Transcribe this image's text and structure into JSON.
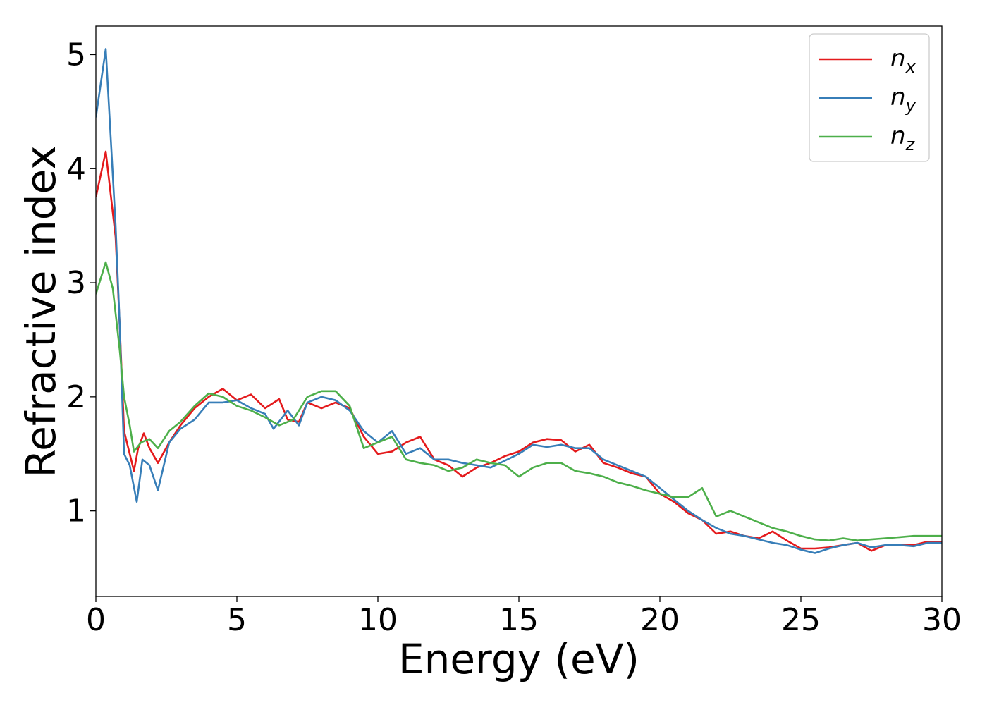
{
  "chart_data": {
    "type": "line",
    "title": "",
    "xlabel": "Energy (eV)",
    "ylabel": "Refractive index",
    "xlim": [
      0,
      30
    ],
    "ylim": [
      0.25,
      5.25
    ],
    "x_ticks": [
      0,
      5,
      10,
      15,
      20,
      25,
      30
    ],
    "y_ticks": [
      1,
      2,
      3,
      4,
      5
    ],
    "grid": false,
    "legend_position": "top-right",
    "series": [
      {
        "name": "n_x",
        "legend_base": "n",
        "legend_sub": "x",
        "color": "#e41a1c",
        "x": [
          0,
          0.35,
          0.7,
          0.85,
          1.0,
          1.2,
          1.35,
          1.5,
          1.7,
          1.9,
          2.2,
          2.6,
          3.0,
          3.5,
          4.0,
          4.5,
          5.0,
          5.5,
          6.0,
          6.5,
          6.8,
          7.2,
          7.5,
          8.0,
          8.5,
          9.0,
          9.5,
          10.0,
          10.5,
          11.0,
          11.5,
          12.0,
          12.5,
          13.0,
          13.5,
          14.0,
          14.5,
          15.0,
          15.5,
          16.0,
          16.5,
          17.0,
          17.5,
          18.0,
          18.5,
          19.0,
          19.5,
          20.0,
          20.5,
          21.0,
          21.5,
          22.0,
          22.5,
          23.0,
          23.5,
          24.0,
          24.5,
          25.0,
          25.5,
          26.0,
          26.5,
          27.0,
          27.5,
          28.0,
          28.5,
          29.0,
          29.5,
          30.0
        ],
        "y": [
          3.75,
          4.15,
          3.4,
          2.6,
          1.7,
          1.5,
          1.35,
          1.55,
          1.68,
          1.55,
          1.42,
          1.6,
          1.75,
          1.9,
          2.0,
          2.07,
          1.97,
          2.02,
          1.9,
          1.98,
          1.8,
          1.78,
          1.95,
          1.9,
          1.95,
          1.9,
          1.65,
          1.5,
          1.52,
          1.6,
          1.65,
          1.45,
          1.4,
          1.3,
          1.38,
          1.42,
          1.48,
          1.52,
          1.6,
          1.63,
          1.62,
          1.52,
          1.58,
          1.42,
          1.38,
          1.33,
          1.3,
          1.15,
          1.08,
          0.98,
          0.92,
          0.8,
          0.82,
          0.78,
          0.76,
          0.82,
          0.74,
          0.67,
          0.67,
          0.68,
          0.7,
          0.72,
          0.65,
          0.7,
          0.7,
          0.7,
          0.73,
          0.73
        ]
      },
      {
        "name": "n_y",
        "legend_base": "n",
        "legend_sub": "y",
        "color": "#377eb8",
        "x": [
          0,
          0.35,
          0.7,
          0.85,
          1.0,
          1.2,
          1.45,
          1.65,
          1.9,
          2.2,
          2.6,
          3.0,
          3.5,
          4.0,
          4.5,
          5.0,
          5.5,
          6.0,
          6.3,
          6.8,
          7.2,
          7.5,
          8.0,
          8.5,
          9.0,
          9.5,
          10.0,
          10.5,
          11.0,
          11.5,
          12.0,
          12.5,
          13.0,
          13.5,
          14.0,
          14.5,
          15.0,
          15.5,
          16.0,
          16.5,
          17.0,
          17.5,
          18.0,
          18.5,
          19.0,
          19.5,
          20.0,
          20.5,
          21.0,
          21.5,
          22.0,
          22.5,
          23.0,
          23.5,
          24.0,
          24.5,
          25.0,
          25.5,
          26.0,
          26.5,
          27.0,
          27.5,
          28.0,
          28.5,
          29.0,
          29.5,
          30.0
        ],
        "y": [
          4.45,
          5.05,
          3.5,
          2.6,
          1.5,
          1.4,
          1.08,
          1.45,
          1.4,
          1.18,
          1.6,
          1.72,
          1.8,
          1.95,
          1.95,
          1.97,
          1.9,
          1.85,
          1.72,
          1.88,
          1.75,
          1.95,
          2.0,
          1.97,
          1.88,
          1.7,
          1.6,
          1.7,
          1.5,
          1.55,
          1.45,
          1.45,
          1.42,
          1.4,
          1.38,
          1.44,
          1.5,
          1.58,
          1.56,
          1.58,
          1.55,
          1.55,
          1.45,
          1.4,
          1.35,
          1.3,
          1.2,
          1.1,
          1.0,
          0.92,
          0.85,
          0.8,
          0.78,
          0.75,
          0.72,
          0.7,
          0.66,
          0.63,
          0.67,
          0.7,
          0.72,
          0.68,
          0.7,
          0.7,
          0.69,
          0.72,
          0.72
        ]
      },
      {
        "name": "n_z",
        "legend_base": "n",
        "legend_sub": "z",
        "color": "#4daf4a",
        "x": [
          0,
          0.35,
          0.6,
          0.85,
          1.0,
          1.2,
          1.35,
          1.6,
          1.9,
          2.2,
          2.6,
          3.0,
          3.5,
          4.0,
          4.5,
          5.0,
          5.5,
          6.0,
          6.5,
          7.0,
          7.5,
          8.0,
          8.5,
          9.0,
          9.5,
          10.0,
          10.5,
          11.0,
          11.5,
          12.0,
          12.5,
          13.0,
          13.5,
          14.0,
          14.5,
          15.0,
          15.5,
          16.0,
          16.5,
          17.0,
          17.5,
          18.0,
          18.5,
          19.0,
          19.5,
          20.0,
          20.5,
          21.0,
          21.5,
          22.0,
          22.5,
          23.0,
          23.5,
          24.0,
          24.5,
          25.0,
          25.5,
          26.0,
          26.5,
          27.0,
          27.5,
          28.0,
          28.5,
          29.0,
          29.5,
          30.0
        ],
        "y": [
          2.9,
          3.18,
          2.95,
          2.4,
          2.0,
          1.75,
          1.52,
          1.6,
          1.63,
          1.55,
          1.7,
          1.78,
          1.92,
          2.03,
          2.0,
          1.92,
          1.88,
          1.82,
          1.75,
          1.8,
          2.0,
          2.05,
          2.05,
          1.92,
          1.55,
          1.6,
          1.65,
          1.45,
          1.42,
          1.4,
          1.35,
          1.38,
          1.45,
          1.42,
          1.4,
          1.3,
          1.38,
          1.42,
          1.42,
          1.35,
          1.33,
          1.3,
          1.25,
          1.22,
          1.18,
          1.15,
          1.12,
          1.12,
          1.2,
          0.95,
          1.0,
          0.95,
          0.9,
          0.85,
          0.82,
          0.78,
          0.75,
          0.74,
          0.76,
          0.74,
          0.75,
          0.76,
          0.77,
          0.78,
          0.78,
          0.78
        ]
      }
    ]
  }
}
